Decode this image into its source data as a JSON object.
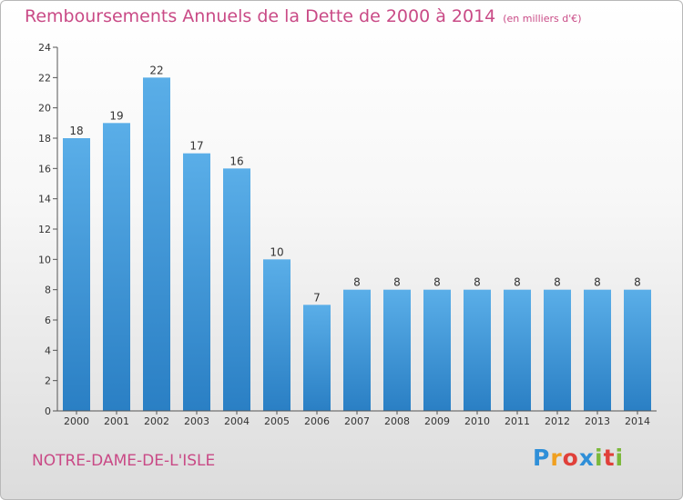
{
  "header": {
    "title": "Remboursements Annuels de la Dette de 2000 à 2014",
    "subtitle": "(en milliers d'€)"
  },
  "footer": {
    "commune": "NOTRE-DAME-DE-L'ISLE",
    "brand": [
      "P",
      "r",
      "o",
      "x",
      "i",
      "t",
      "i"
    ]
  },
  "colors": {
    "accent": "#c94a86",
    "bar_top": "#5aaee8",
    "bar_bottom": "#2a7fc4"
  },
  "chart_data": {
    "type": "bar",
    "categories": [
      "2000",
      "2001",
      "2002",
      "2003",
      "2004",
      "2005",
      "2006",
      "2007",
      "2008",
      "2009",
      "2010",
      "2011",
      "2012",
      "2013",
      "2014"
    ],
    "values": [
      18,
      19,
      22,
      17,
      16,
      10,
      7,
      8,
      8,
      8,
      8,
      8,
      8,
      8,
      8
    ],
    "title": "Remboursements Annuels de la Dette de 2000 à 2014",
    "xlabel": "",
    "ylabel": "",
    "ylim": [
      0,
      24
    ],
    "yticks": [
      0,
      2,
      4,
      6,
      8,
      10,
      12,
      14,
      16,
      18,
      20,
      22,
      24
    ],
    "grid": false,
    "legend": "none"
  }
}
